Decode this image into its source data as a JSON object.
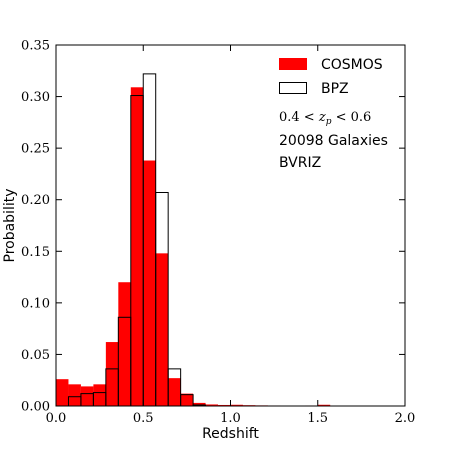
{
  "chart_data": {
    "type": "bar",
    "xlabel": "Redshift",
    "ylabel": "Probability",
    "xlim": [
      0.0,
      2.0
    ],
    "ylim": [
      0.0,
      0.35
    ],
    "x_ticks": [
      "0.0",
      "0.5",
      "1.0",
      "1.5",
      "2.0"
    ],
    "y_ticks": [
      "0.00",
      "0.05",
      "0.10",
      "0.15",
      "0.20",
      "0.25",
      "0.30",
      "0.35"
    ],
    "bin_width": 0.0714,
    "bin_starts": [
      0.0,
      0.0714,
      0.1429,
      0.2143,
      0.2857,
      0.3571,
      0.4286,
      0.5,
      0.5714,
      0.6429,
      0.7143,
      0.7857,
      0.8571,
      0.9286,
      1.0,
      1.0714,
      1.1429,
      1.2143,
      1.2857,
      1.3571,
      1.4286,
      1.5,
      1.5714,
      1.6429,
      1.7143,
      1.7857,
      1.8571,
      1.9286
    ],
    "series": [
      {
        "name": "COSMOS",
        "style": "filled",
        "color": "#ff0000",
        "values": [
          0.026,
          0.021,
          0.019,
          0.021,
          0.062,
          0.12,
          0.309,
          0.238,
          0.148,
          0.027,
          0.012,
          0.003,
          0.0015,
          0.001,
          0.0012,
          0.0008,
          0.0006,
          0.0005,
          0.0004,
          0.0003,
          0.0005,
          0.0012,
          0.0004,
          0.0003,
          0.0002,
          0.0002,
          0.0002,
          0.0001
        ]
      },
      {
        "name": "BPZ",
        "style": "outline",
        "color": "#000000",
        "values": [
          0.0,
          0.009,
          0.012,
          0.013,
          0.036,
          0.086,
          0.301,
          0.322,
          0.207,
          0.036,
          0.011,
          0.001,
          0.0,
          0.0,
          0.0,
          0.0,
          0.0,
          0.0,
          0.0,
          0.0,
          0.0,
          0.0,
          0.0,
          0.0,
          0.0,
          0.0,
          0.0,
          0.0
        ]
      }
    ],
    "legend": {
      "position": "top-right",
      "entries": [
        {
          "label": "COSMOS",
          "style": "filled",
          "color": "#ff0000"
        },
        {
          "label": "BPZ",
          "style": "outline",
          "color": "#000000"
        }
      ]
    },
    "annotations": {
      "zrange": {
        "pre": "0.4 < ",
        "z": "z",
        "sub": "p",
        "post": " < 0.6"
      },
      "galaxies": "20098 Galaxies",
      "filters": "BVRIZ"
    },
    "grid": false
  }
}
